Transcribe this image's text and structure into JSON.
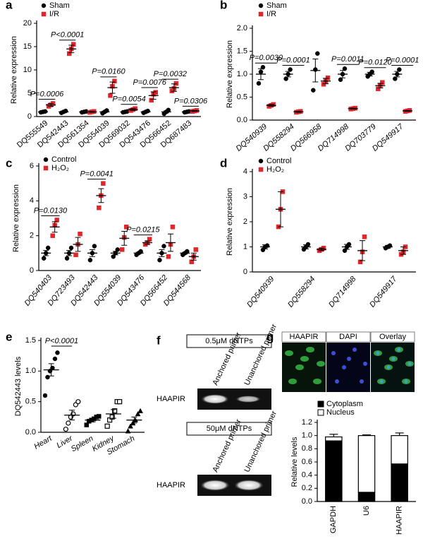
{
  "chart_data": [
    {
      "type": "dotplot",
      "panel": "a",
      "ylabel": "Relative expression",
      "categories": [
        "DQ555549",
        "DQ542443",
        "DQ561354",
        "DQ554039",
        "DQ569032",
        "DQ543476",
        "DQ566452",
        "DQ687483"
      ],
      "category_colors": [
        "#000000",
        "#d7191c",
        "#000000",
        "#000000",
        "#000000",
        "#000000",
        "#000000",
        "#000000"
      ],
      "ylim": [
        0,
        20
      ],
      "yticks": [
        0,
        5,
        10,
        15,
        20
      ],
      "pvalues": [
        "P=0.0006",
        "P<0.0001",
        null,
        "P=0.0160",
        "P=0.0054",
        "P=0.0076",
        "P=0.0032",
        "P=0.0306"
      ],
      "series": [
        {
          "name": "Sham",
          "color": "#000000",
          "marker": "circle",
          "values": [
            1,
            1,
            1,
            1,
            1,
            1,
            1,
            1
          ],
          "errors": [
            0.1,
            0.1,
            0.1,
            0.15,
            0.1,
            0.1,
            0.2,
            0.1
          ],
          "points": [
            [
              0.9,
              1,
              1.1
            ],
            [
              0.8,
              1,
              1.2
            ],
            [
              0.9,
              1,
              1.1
            ],
            [
              0.7,
              1,
              1.3
            ],
            [
              0.9,
              1,
              1.1
            ],
            [
              0.8,
              1,
              1.2
            ],
            [
              0.6,
              1,
              1.4
            ],
            [
              0.9,
              1,
              1.1
            ]
          ]
        },
        {
          "name": "I/R",
          "color": "#e0262a",
          "marker": "square",
          "values": [
            2.5,
            14.5,
            1,
            6.2,
            1.5,
            4.5,
            6.2,
            1.2
          ],
          "errors": [
            0.3,
            0.8,
            0.1,
            1.2,
            0.2,
            0.8,
            0.8,
            0.1
          ],
          "points": [
            [
              2.2,
              2.5,
              2.8
            ],
            [
              13.5,
              14.5,
              15.5
            ],
            [
              0.9,
              1,
              1.1
            ],
            [
              4.5,
              6.5,
              7.6
            ],
            [
              1.3,
              1.5,
              1.7
            ],
            [
              3.5,
              4.8,
              5.2
            ],
            [
              5.5,
              6,
              7.1
            ],
            [
              1.1,
              1.2,
              1.3
            ]
          ]
        }
      ]
    },
    {
      "type": "dotplot",
      "panel": "b",
      "ylabel": "Relative expression",
      "categories": [
        "DQ540939",
        "DQ558294",
        "DQ566958",
        "DQ714998",
        "DQ703779",
        "DQ549917"
      ],
      "ylim": [
        0,
        2
      ],
      "yticks": [
        {
          "value": 0,
          "label": "0.0"
        },
        {
          "value": 0.5,
          "label": "0.5"
        },
        {
          "value": 1,
          "label": "1.0"
        },
        {
          "value": 1.5,
          "label": "1.5"
        },
        {
          "value": 2,
          "label": "2.0"
        }
      ],
      "pvalues": [
        "P=0.0030",
        "P=0.0001",
        null,
        "P=0.0011",
        "P=0.0120",
        "P=0.0001"
      ],
      "series": [
        {
          "name": "Sham",
          "color": "#000000",
          "marker": "circle",
          "values": [
            1,
            1,
            1.08,
            1,
            1,
            1
          ],
          "errors": [
            0.12,
            0.06,
            0.25,
            0.08,
            0.04,
            0.06
          ],
          "points": [
            [
              0.8,
              1.05,
              1.15
            ],
            [
              0.9,
              1,
              1.1
            ],
            [
              0.65,
              1.1,
              1.45
            ],
            [
              0.88,
              1,
              1.12
            ],
            [
              0.95,
              1,
              1.05
            ],
            [
              0.9,
              1,
              1.1
            ]
          ]
        },
        {
          "name": "I/R",
          "color": "#e0262a",
          "marker": "square",
          "values": [
            0.32,
            0.18,
            0.85,
            0.25,
            0.75,
            0.2
          ],
          "errors": [
            0.02,
            0.01,
            0.06,
            0.01,
            0.05,
            0.01
          ],
          "points": [
            [
              0.3,
              0.32,
              0.34
            ],
            [
              0.17,
              0.18,
              0.19
            ],
            [
              0.78,
              0.85,
              0.92
            ],
            [
              0.24,
              0.25,
              0.26
            ],
            [
              0.68,
              0.76,
              0.82
            ],
            [
              0.19,
              0.2,
              0.21
            ]
          ]
        }
      ]
    },
    {
      "type": "dotplot",
      "panel": "c",
      "ylabel": "Relative expression",
      "categories": [
        "DQ540403",
        "DQ723493",
        "DQ542443",
        "DQ554039",
        "DQ543476",
        "DQ566452",
        "DQ544568"
      ],
      "ylim": [
        0,
        6
      ],
      "yticks": [
        0,
        2,
        4,
        6
      ],
      "pvalues": [
        "P=0.0130",
        null,
        "P=0.0041",
        null,
        "P=0.0215",
        null,
        null
      ],
      "series": [
        {
          "name": "Control",
          "color": "#000000",
          "marker": "circle",
          "values": [
            1,
            1,
            1,
            1,
            1,
            1,
            1
          ],
          "errors": [
            0.15,
            0.15,
            0.2,
            0.1,
            0.05,
            0.2,
            0.05
          ],
          "points": [
            [
              0.7,
              1,
              1.3
            ],
            [
              0.7,
              1,
              1.3
            ],
            [
              0.6,
              1,
              1.4
            ],
            [
              0.8,
              1,
              1.2
            ],
            [
              0.9,
              1,
              1.1
            ],
            [
              0.6,
              1,
              1.4
            ],
            [
              0.9,
              1,
              1.1
            ]
          ]
        },
        {
          "name": "H₂O₂",
          "color": "#e0262a",
          "marker": "square",
          "values": [
            2.5,
            1.5,
            4.3,
            1.85,
            1.6,
            1.6,
            0.8
          ],
          "errors": [
            0.3,
            0.4,
            0.4,
            0.4,
            0.1,
            0.5,
            0.2
          ],
          "points": [
            [
              2,
              2.6,
              2.9
            ],
            [
              0.9,
              1.5,
              2.1
            ],
            [
              3.6,
              4.3,
              5
            ],
            [
              1.2,
              1.9,
              2.5
            ],
            [
              1.5,
              1.6,
              1.8
            ],
            [
              0.8,
              1.5,
              2.5
            ],
            [
              0.5,
              0.8,
              1.2
            ]
          ]
        }
      ]
    },
    {
      "type": "dotplot",
      "panel": "d",
      "ylabel": "Relative expression",
      "categories": [
        "DQ540939",
        "DQ558294",
        "DQ714998",
        "DQ549917"
      ],
      "ylim": [
        0,
        4
      ],
      "yticks": [
        0,
        1,
        2,
        3,
        4
      ],
      "series": [
        {
          "name": "Control",
          "color": "#000000",
          "marker": "circle",
          "values": [
            1,
            1,
            1,
            1
          ],
          "errors": [
            0.08,
            0.08,
            0.1,
            0.06
          ],
          "points": [
            [
              0.88,
              1,
              1.05
            ],
            [
              0.9,
              1,
              1.1
            ],
            [
              0.85,
              1,
              1.1
            ],
            [
              0.95,
              1,
              1.05
            ]
          ]
        },
        {
          "name": "H₂O₂",
          "color": "#e0262a",
          "marker": "square",
          "values": [
            2.5,
            0.9,
            0.85,
            0.85
          ],
          "errors": [
            0.7,
            0.05,
            0.4,
            0.15
          ],
          "points": [
            [
              1.8,
              2.5,
              3.2
            ],
            [
              0.85,
              0.9,
              0.95
            ],
            [
              0.4,
              0.8,
              1.4
            ],
            [
              0.7,
              0.8,
              1
            ]
          ]
        }
      ]
    },
    {
      "type": "dotplot",
      "panel": "e",
      "ylabel": "DQ542443 levels",
      "categories": [
        "Heart",
        "Liver",
        "Spleen",
        "Kidney",
        "Stomach"
      ],
      "markers": [
        "circle",
        "circle-open",
        "square",
        "square-open",
        "triangle"
      ],
      "ylim": [
        0,
        1.5
      ],
      "yticks": [
        {
          "value": 0,
          "label": "0.0"
        },
        {
          "value": 0.5,
          "label": "0.5"
        },
        {
          "value": 1,
          "label": "1.0"
        },
        {
          "value": 1.5,
          "label": "1.5"
        }
      ],
      "annotation": "P<0.0001",
      "series": [
        {
          "color": "#000000",
          "values": [
            1.02,
            0.28,
            0.2,
            0.3,
            0.2
          ],
          "errors": [
            0.1,
            0.08,
            0.03,
            0.07,
            0.05
          ],
          "points": [
            [
              0.6,
              0.9,
              1,
              1.05,
              1.2,
              1.3
            ],
            [
              0.05,
              0.15,
              0.25,
              0.3,
              0.45,
              0.5
            ],
            [
              0.12,
              0.18,
              0.2,
              0.22,
              0.25,
              0.26
            ],
            [
              0.1,
              0.2,
              0.25,
              0.35,
              0.5,
              0.5
            ],
            [
              0.02,
              0.1,
              0.15,
              0.2,
              0.3,
              0.35
            ]
          ]
        }
      ]
    },
    {
      "type": "bar",
      "stacked": true,
      "ylabel": "Relative  levels",
      "categories": [
        "GAPDH",
        "U6",
        "HAAPIR"
      ],
      "ylim": [
        0,
        1.2
      ],
      "yticks": [
        {
          "value": 0,
          "label": "0.0"
        },
        {
          "value": 0.2,
          "label": "0.2"
        },
        {
          "value": 0.4,
          "label": "0.4"
        },
        {
          "value": 0.6,
          "label": "0.6"
        },
        {
          "value": 0.8,
          "label": "0.8"
        },
        {
          "value": 1,
          "label": "1.0"
        },
        {
          "value": 1.2,
          "label": "1.2"
        }
      ],
      "series": [
        {
          "name": "Cytoplasm",
          "color": "#000000",
          "values": [
            0.92,
            0.14,
            0.57
          ],
          "errors": [
            0.03,
            0.01,
            0.04
          ]
        },
        {
          "name": "Nucleus",
          "color": "#ffffff",
          "values": [
            0.06,
            0.86,
            0.43
          ],
          "errors": [
            0.04,
            0.01,
            0.04
          ]
        }
      ]
    }
  ],
  "panel_f": {
    "panel": "f",
    "gels": [
      {
        "title": "0.5μM dNTPs",
        "lanes": [
          "Anchored primer",
          "Unanchored primer"
        ],
        "row_label": "HAAPIR"
      },
      {
        "title": "50μM dNTPs",
        "lanes": [
          "Anchored primer",
          "Unanchored primer"
        ],
        "row_label": "HAAPIR"
      }
    ]
  },
  "panel_g_images": {
    "panel": "g",
    "labels": [
      "HAAPIR",
      "DAPI",
      "Overlay"
    ]
  }
}
